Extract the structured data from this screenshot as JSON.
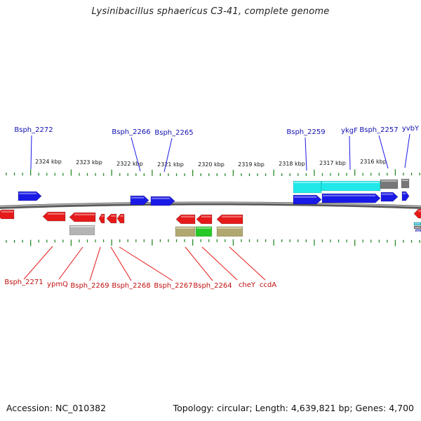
{
  "title": "Lysinibacillus sphaericus C3-41, complete genome",
  "footer": {
    "accession": "Accession: NC_010382",
    "topology": "Topology: circular; Length: 4,639,821 bp; Genes: 4,700"
  },
  "colors": {
    "forward_gene": "#1a1ae6",
    "reverse_gene": "#e61a1a",
    "top_label": "#1010b0",
    "bottom_label": "#c01010",
    "backbone": "#808080",
    "tick": "#2a8a2a",
    "feature_cyan": "#20e8e8",
    "feature_gray": "#777777",
    "feature_lightgray": "#b4b4b4",
    "feature_olive": "#b0a870",
    "feature_green": "#28c828"
  },
  "scale_labels": [
    "2324 kbp",
    "2323 kbp",
    "2322 kbp",
    "2321 kbp",
    "2320 kbp",
    "2319 kbp",
    "2318 kbp",
    "2317 kbp",
    "2316 kbp"
  ],
  "top_labels": [
    "Bsph_2272",
    "Bsph_2266",
    "Bsph_2265",
    "Bsph_2259",
    "ykgF",
    "Bsph_2257",
    "yvbY"
  ],
  "bottom_labels": [
    "Bsph_2271",
    "ypmQ",
    "Bsph_2269",
    "Bsph_2268",
    "Bsph_2267",
    "Bsph_2264",
    "cheY",
    "ccdA"
  ]
}
